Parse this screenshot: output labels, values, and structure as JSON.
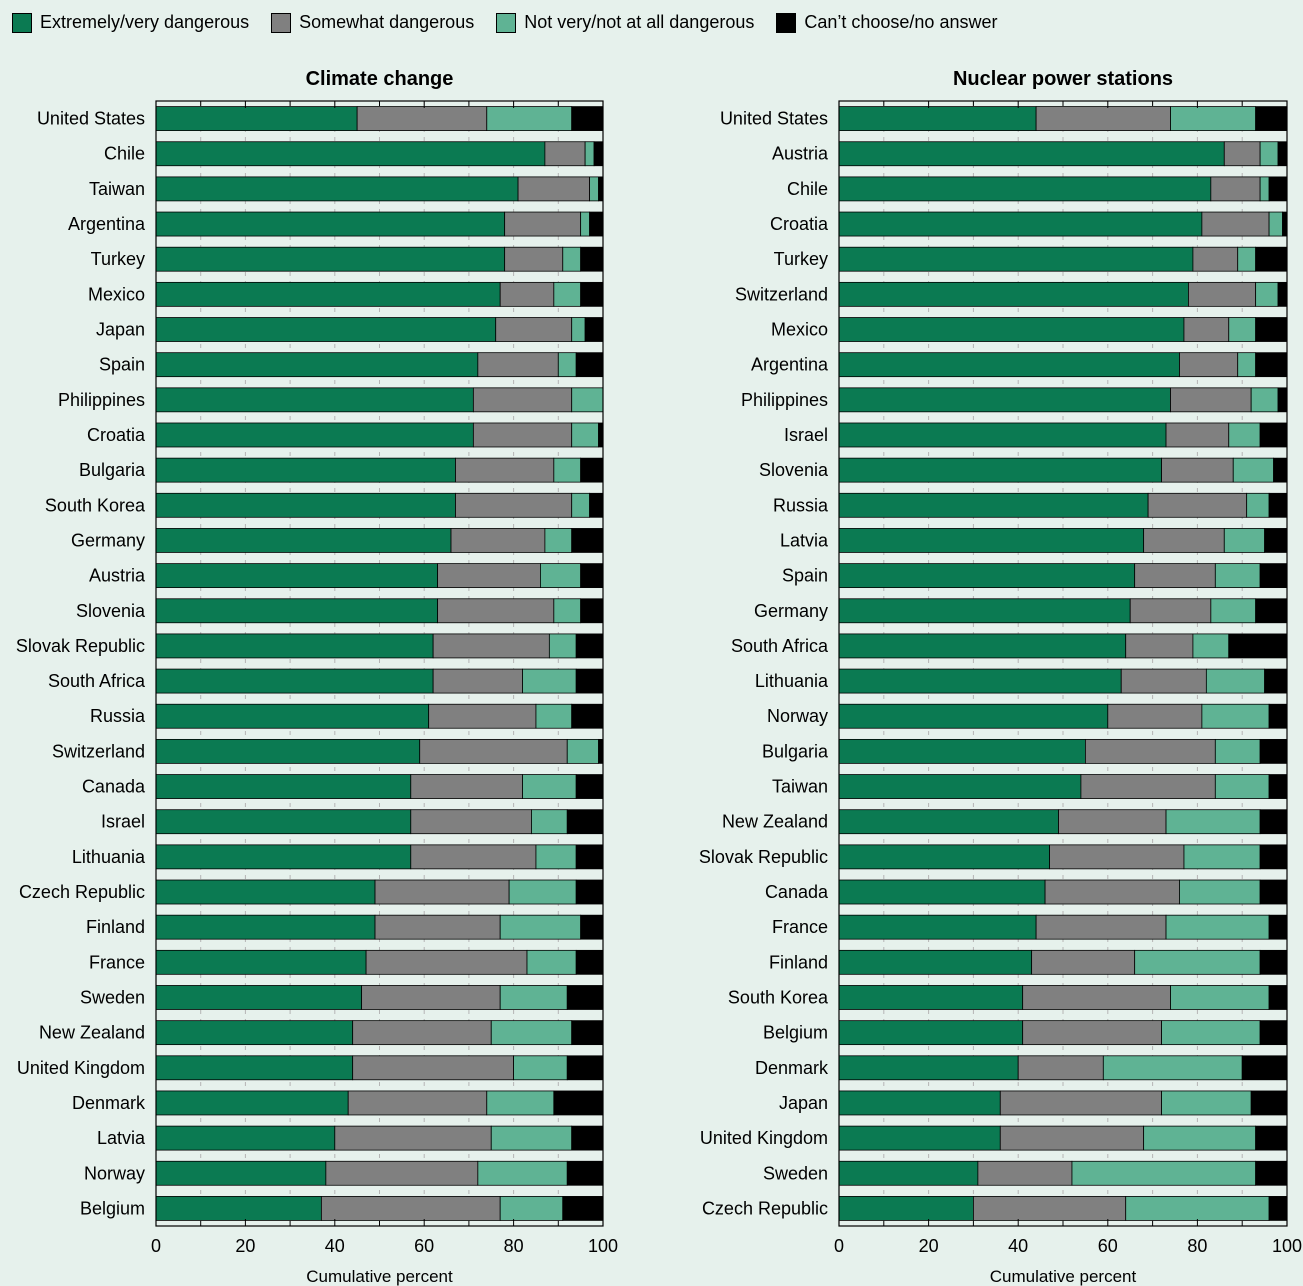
{
  "legend": [
    {
      "label": "Extremely/very dangerous",
      "color": "#0b7a52"
    },
    {
      "label": "Somewhat dangerous",
      "color": "#808080"
    },
    {
      "label": "Not very/not at all dangerous",
      "color": "#5fb394"
    },
    {
      "label": "Can’t choose/no answer",
      "color": "#000000"
    }
  ],
  "chart_data": [
    {
      "type": "bar",
      "stacked": true,
      "orientation": "horizontal",
      "title": "Climate change",
      "xlabel": "Cumulative percent",
      "xlim": [
        0,
        100
      ],
      "xticks": [
        "0",
        "20",
        "40",
        "60",
        "80",
        "100"
      ],
      "categories": [
        "United States",
        "Chile",
        "Taiwan",
        "Argentina",
        "Turkey",
        "Mexico",
        "Japan",
        "Spain",
        "Philippines",
        "Croatia",
        "Bulgaria",
        "South Korea",
        "Germany",
        "Austria",
        "Slovenia",
        "Slovak Republic",
        "South Africa",
        "Russia",
        "Switzerland",
        "Canada",
        "Israel",
        "Lithuania",
        "Czech Republic",
        "Finland",
        "France",
        "Sweden",
        "New Zealand",
        "United Kingdom",
        "Denmark",
        "Latvia",
        "Norway",
        "Belgium"
      ],
      "series": [
        {
          "name": "Extremely/very dangerous",
          "values": [
            45,
            87,
            81,
            78,
            78,
            77,
            76,
            72,
            71,
            71,
            67,
            67,
            66,
            63,
            63,
            62,
            62,
            61,
            59,
            57,
            57,
            57,
            49,
            49,
            47,
            46,
            44,
            44,
            43,
            40,
            38,
            37
          ]
        },
        {
          "name": "Somewhat dangerous",
          "values": [
            29,
            9,
            16,
            17,
            13,
            12,
            17,
            18,
            22,
            22,
            22,
            26,
            21,
            23,
            26,
            26,
            20,
            24,
            33,
            25,
            27,
            28,
            30,
            28,
            36,
            31,
            31,
            36,
            31,
            35,
            34,
            40
          ]
        },
        {
          "name": "Not very/not at all dangerous",
          "values": [
            19,
            2,
            2,
            2,
            4,
            6,
            3,
            4,
            7,
            6,
            6,
            4,
            6,
            9,
            6,
            6,
            12,
            8,
            7,
            12,
            8,
            9,
            15,
            18,
            11,
            15,
            18,
            12,
            15,
            18,
            20,
            14
          ]
        },
        {
          "name": "Can’t choose/no answer",
          "values": [
            7,
            2,
            1,
            3,
            5,
            5,
            4,
            6,
            0,
            1,
            5,
            3,
            7,
            5,
            5,
            6,
            6,
            7,
            1,
            6,
            8,
            6,
            6,
            5,
            6,
            8,
            7,
            8,
            11,
            7,
            8,
            9
          ]
        }
      ]
    },
    {
      "type": "bar",
      "stacked": true,
      "orientation": "horizontal",
      "title": "Nuclear power stations",
      "xlabel": "Cumulative percent",
      "xlim": [
        0,
        100
      ],
      "xticks": [
        "0",
        "20",
        "40",
        "60",
        "80",
        "100"
      ],
      "categories": [
        "United States",
        "Austria",
        "Chile",
        "Croatia",
        "Turkey",
        "Switzerland",
        "Mexico",
        "Argentina",
        "Philippines",
        "Israel",
        "Slovenia",
        "Russia",
        "Latvia",
        "Spain",
        "Germany",
        "South Africa",
        "Lithuania",
        "Norway",
        "Bulgaria",
        "Taiwan",
        "New Zealand",
        "Slovak Republic",
        "Canada",
        "France",
        "Finland",
        "South Korea",
        "Belgium",
        "Denmark",
        "Japan",
        "United Kingdom",
        "Sweden",
        "Czech Republic"
      ],
      "series": [
        {
          "name": "Extremely/very dangerous",
          "values": [
            44,
            86,
            83,
            81,
            79,
            78,
            77,
            76,
            74,
            73,
            72,
            69,
            68,
            66,
            65,
            64,
            63,
            60,
            55,
            54,
            49,
            47,
            46,
            44,
            43,
            41,
            41,
            40,
            36,
            36,
            31,
            30
          ]
        },
        {
          "name": "Somewhat dangerous",
          "values": [
            30,
            8,
            11,
            15,
            10,
            15,
            10,
            13,
            18,
            14,
            16,
            22,
            18,
            18,
            18,
            15,
            19,
            21,
            29,
            30,
            24,
            30,
            30,
            29,
            23,
            33,
            31,
            19,
            36,
            32,
            21,
            34
          ]
        },
        {
          "name": "Not very/not at all dangerous",
          "values": [
            19,
            4,
            2,
            3,
            4,
            5,
            6,
            4,
            6,
            7,
            9,
            5,
            9,
            10,
            10,
            8,
            13,
            15,
            10,
            12,
            21,
            17,
            18,
            23,
            28,
            22,
            22,
            31,
            20,
            25,
            41,
            32
          ]
        },
        {
          "name": "Can’t choose/no answer",
          "values": [
            7,
            2,
            4,
            1,
            7,
            2,
            7,
            7,
            2,
            6,
            3,
            4,
            5,
            6,
            7,
            13,
            5,
            4,
            6,
            4,
            6,
            6,
            6,
            4,
            6,
            4,
            6,
            10,
            8,
            7,
            7,
            4
          ]
        }
      ]
    }
  ]
}
